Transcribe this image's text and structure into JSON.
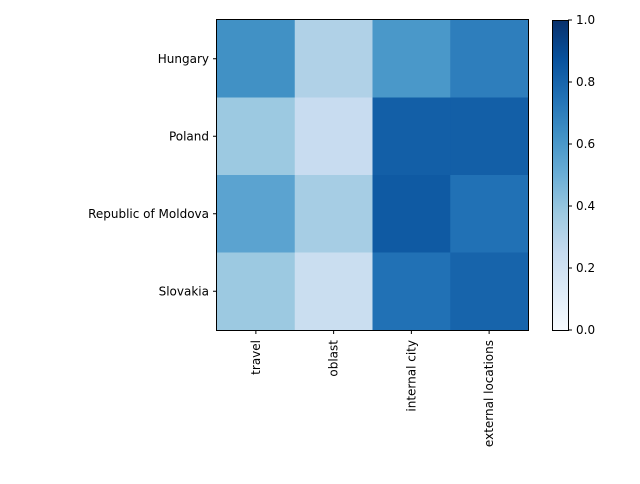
{
  "chart_data": {
    "type": "heatmap",
    "title": "",
    "xlabel": "",
    "ylabel": "",
    "x_categories": [
      "travel",
      "oblast",
      "internal city",
      "external locations"
    ],
    "y_categories": [
      "Hungary",
      "Poland",
      "Republic of Moldova",
      "Slovakia"
    ],
    "values": [
      [
        0.63,
        0.32,
        0.6,
        0.7
      ],
      [
        0.38,
        0.24,
        0.82,
        0.82
      ],
      [
        0.55,
        0.35,
        0.84,
        0.75
      ],
      [
        0.38,
        0.23,
        0.75,
        0.8
      ]
    ],
    "colorbar": {
      "min": 0.0,
      "max": 1.0,
      "ticks": [
        "0.0",
        "0.2",
        "0.4",
        "0.6",
        "0.8",
        "1.0"
      ],
      "colormap": "Blues"
    },
    "grid": false
  }
}
